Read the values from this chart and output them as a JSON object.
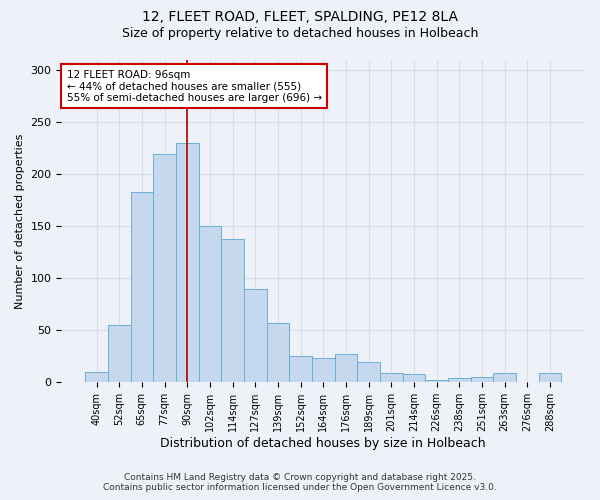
{
  "title1": "12, FLEET ROAD, FLEET, SPALDING, PE12 8LA",
  "title2": "Size of property relative to detached houses in Holbeach",
  "xlabel": "Distribution of detached houses by size in Holbeach",
  "ylabel": "Number of detached properties",
  "categories": [
    "40sqm",
    "52sqm",
    "65sqm",
    "77sqm",
    "90sqm",
    "102sqm",
    "114sqm",
    "127sqm",
    "139sqm",
    "152sqm",
    "164sqm",
    "176sqm",
    "189sqm",
    "201sqm",
    "214sqm",
    "226sqm",
    "238sqm",
    "251sqm",
    "263sqm",
    "276sqm",
    "288sqm"
  ],
  "values": [
    10,
    55,
    183,
    220,
    230,
    150,
    138,
    90,
    57,
    25,
    23,
    27,
    20,
    9,
    8,
    2,
    4,
    5,
    9,
    0,
    9
  ],
  "bar_color": "#c5d8ee",
  "bar_edge_color": "#6aafd6",
  "vline_index": 4,
  "vline_color": "#aa0000",
  "annotation_title": "12 FLEET ROAD: 96sqm",
  "annotation_line1": "← 44% of detached houses are smaller (555)",
  "annotation_line2": "55% of semi-detached houses are larger (696) →",
  "annotation_box_color": "#ffffff",
  "annotation_box_edge": "#cc0000",
  "ylim": [
    0,
    310
  ],
  "yticks": [
    0,
    50,
    100,
    150,
    200,
    250,
    300
  ],
  "footer1": "Contains HM Land Registry data © Crown copyright and database right 2025.",
  "footer2": "Contains public sector information licensed under the Open Government Licence v3.0.",
  "bg_color": "#eef2f8"
}
